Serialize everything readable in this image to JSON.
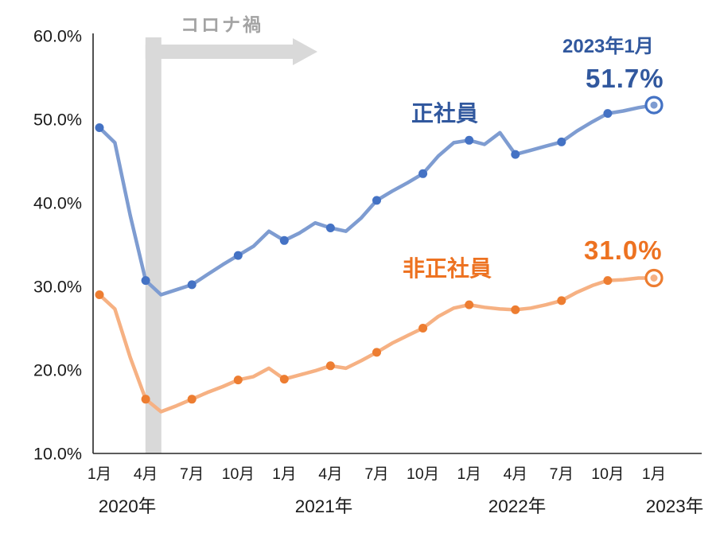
{
  "annotations": {
    "covid_label": "コロナ禍",
    "series1_label": "正社員",
    "series2_label": "非正社員",
    "end_date_label": "2023年1月",
    "series1_end_value": "51.7%",
    "series2_end_value": "31.0%"
  },
  "colors": {
    "series1_line": "#7e9cd1",
    "series1_marker": "#4472c4",
    "series2_line": "#f6b183",
    "series2_marker": "#ed7d31",
    "covid_band": "#d9d9d9",
    "axis": "#262626",
    "tick_text": "#1a1a1a",
    "text_blue": "#31589e",
    "text_orange": "#ed7221",
    "text_gray": "#a3a3a3"
  },
  "chart_data": {
    "type": "line",
    "title": "",
    "xlabel": "",
    "ylabel": "",
    "grid": false,
    "legend_position": "inline-labels",
    "ylim": [
      10,
      60
    ],
    "ytick_values": [
      60,
      50,
      40,
      30,
      20,
      10
    ],
    "ytick_labels": [
      "60.0%",
      "50.0%",
      "40.0%",
      "30.0%",
      "20.0%",
      "10.0%"
    ],
    "xtick_labels": [
      "1月",
      "4月",
      "7月",
      "10月",
      "1月",
      "4月",
      "7月",
      "10月",
      "1月",
      "4月",
      "7月",
      "10月",
      "1月"
    ],
    "year_labels": [
      "2020年",
      "2021年",
      "2022年",
      "2023年"
    ],
    "x_start": "2020年1月",
    "x_end": "2023年1月",
    "x_interval": "monthly",
    "covid_band_month": 3.5,
    "series": [
      {
        "name": "正社員",
        "end_value": 51.7,
        "values": [
          49.0,
          47.2,
          38.5,
          30.7,
          29.0,
          29.6,
          30.2,
          31.4,
          32.6,
          33.7,
          34.8,
          36.6,
          35.5,
          36.4,
          37.6,
          37.0,
          36.6,
          38.2,
          40.3,
          41.4,
          42.4,
          43.5,
          45.6,
          47.2,
          47.5,
          47.0,
          48.4,
          45.8,
          46.3,
          46.8,
          47.3,
          48.6,
          49.7,
          50.7,
          51.0,
          51.4,
          51.7
        ]
      },
      {
        "name": "非正社員",
        "end_value": 31.0,
        "values": [
          29.0,
          27.3,
          21.5,
          16.5,
          15.0,
          15.7,
          16.5,
          17.3,
          18.0,
          18.8,
          19.2,
          20.2,
          18.9,
          19.4,
          19.9,
          20.5,
          20.2,
          21.1,
          22.1,
          23.2,
          24.1,
          25.0,
          26.4,
          27.4,
          27.8,
          27.5,
          27.3,
          27.2,
          27.4,
          27.8,
          28.3,
          29.3,
          30.1,
          30.7,
          30.8,
          31.0,
          31.0
        ]
      }
    ]
  }
}
